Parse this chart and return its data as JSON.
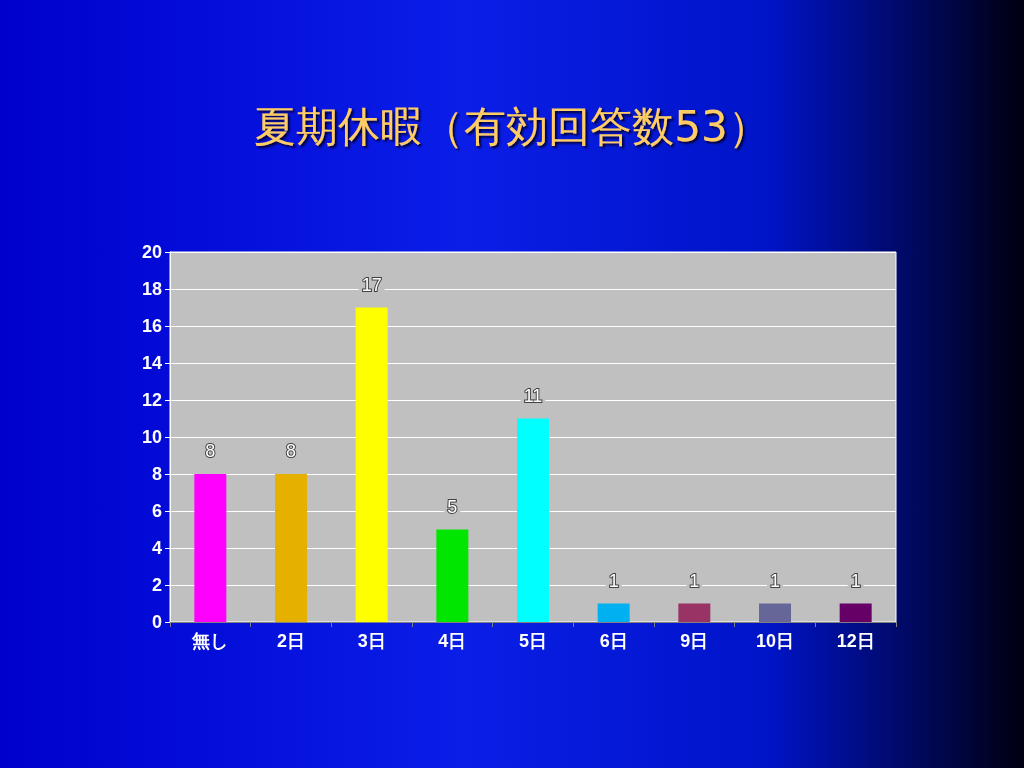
{
  "chart_data": {
    "type": "bar",
    "title": "夏期休暇（有効回答数53）",
    "categories": [
      "無し",
      "2日",
      "3日",
      "4日",
      "5日",
      "6日",
      "9日",
      "10日",
      "12日"
    ],
    "values": [
      8,
      8,
      17,
      5,
      11,
      1,
      1,
      1,
      1
    ],
    "colors": [
      "#ff00ff",
      "#e6b000",
      "#ffff00",
      "#00e600",
      "#00ffff",
      "#00b0f0",
      "#993366",
      "#666699",
      "#660066"
    ],
    "ylim": [
      0,
      20
    ],
    "yticks": [
      0,
      2,
      4,
      6,
      8,
      10,
      12,
      14,
      16,
      18,
      20
    ],
    "grid": "y",
    "data_labels": true
  }
}
